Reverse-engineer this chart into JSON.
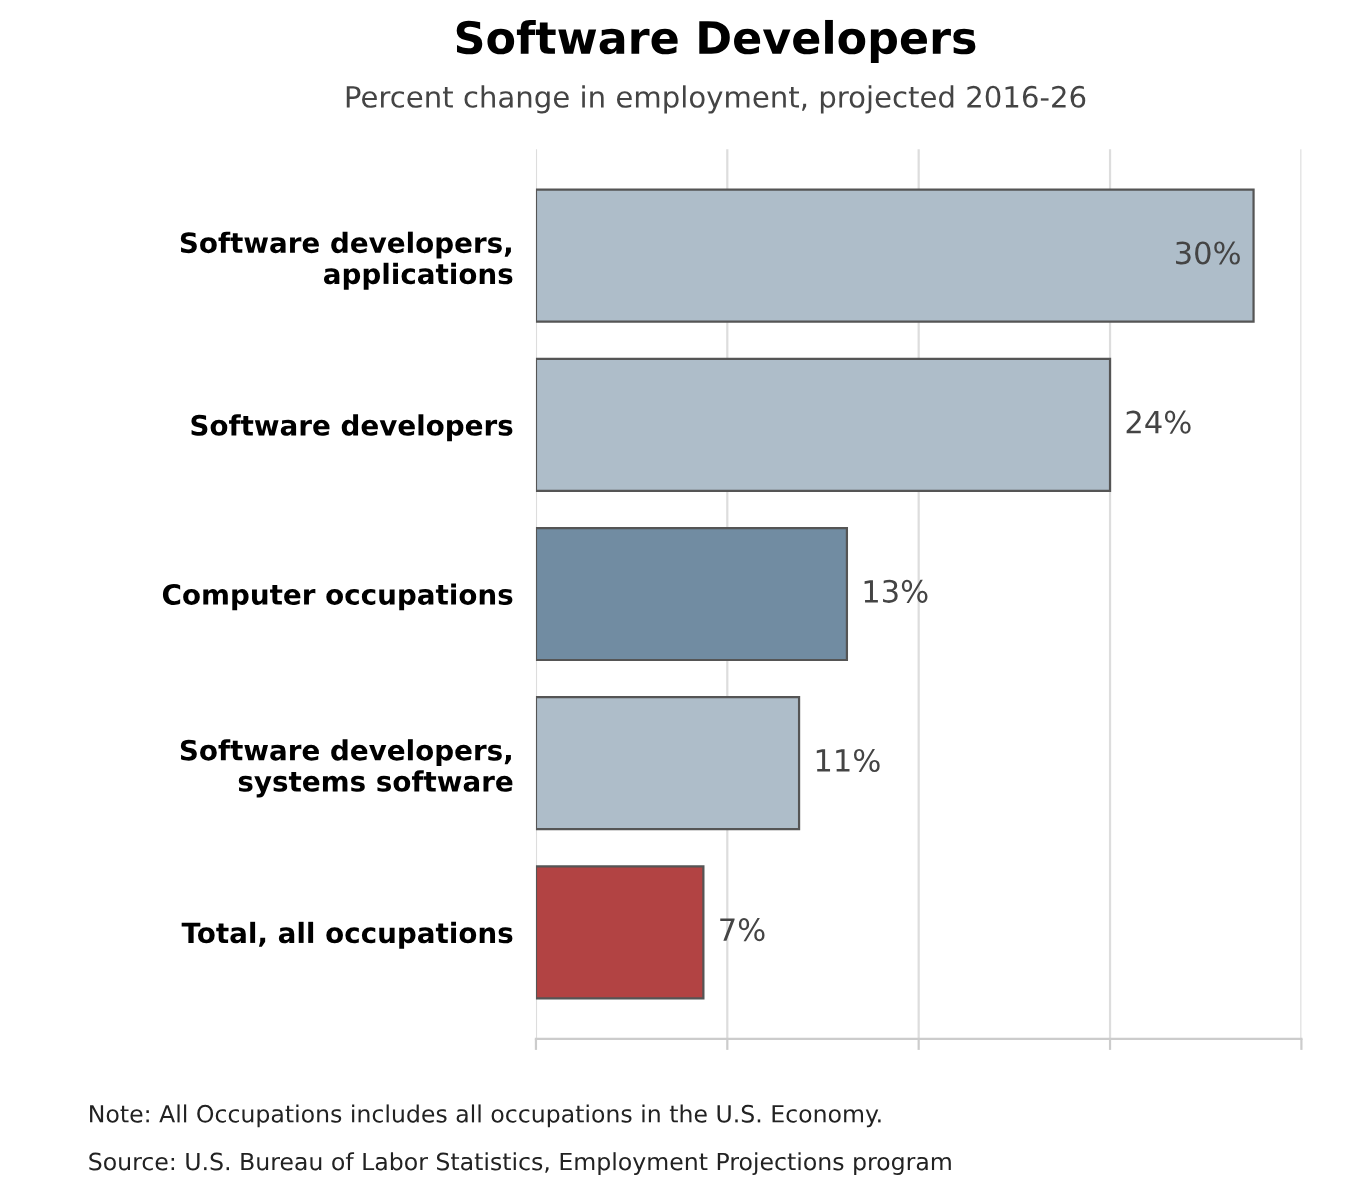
{
  "chart_data": {
    "type": "bar",
    "orientation": "horizontal",
    "title": "Software Developers",
    "subtitle": "Percent change in employment, projected 2016-26",
    "categories": [
      "Software developers,\napplications",
      "Software developers",
      "Computer occupations",
      "Software developers,\nsystems software",
      "Total, all occupations"
    ],
    "values": [
      30,
      24,
      13,
      11,
      7
    ],
    "colors": [
      "#aebdc9",
      "#aebdc9",
      "#718ca2",
      "#aebdc9",
      "#b24343"
    ],
    "value_labels": [
      "30%",
      "24%",
      "13%",
      "11%",
      "7%"
    ],
    "xlim": [
      0,
      32
    ],
    "xticks": [
      {
        "value": 0,
        "label": null
      },
      {
        "value": 8,
        "label": null
      },
      {
        "value": 16,
        "label": null
      },
      {
        "value": 24,
        "label": null
      },
      {
        "value": 32,
        "label": null
      }
    ],
    "grid": "x",
    "annotations": [
      "Note: All Occupations includes all occupations in the U.S. Economy.",
      "Source: U.S. Bureau of Labor Statistics, Employment Projections program"
    ]
  }
}
